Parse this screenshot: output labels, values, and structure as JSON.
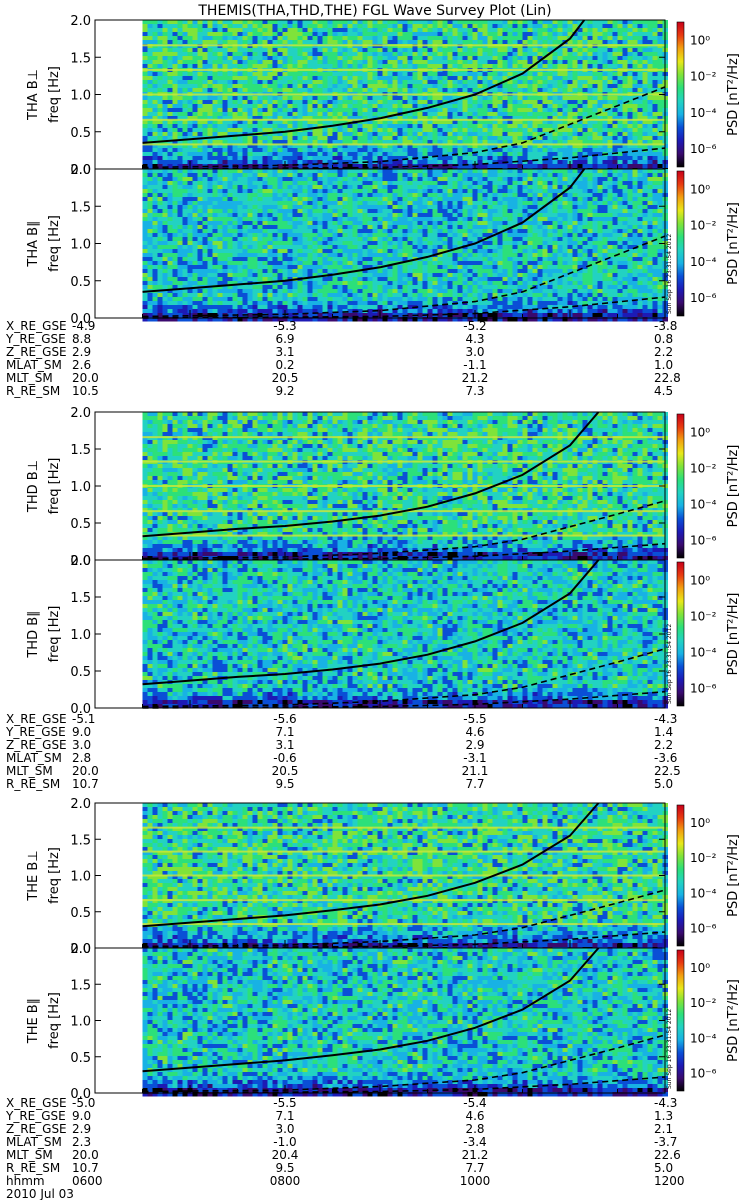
{
  "title": "THEMIS(THA,THD,THE) FGL Wave Survey Plot (Lin)",
  "colorbar": {
    "label": "PSD [nT²/Hz]",
    "ticks": [
      "10⁰",
      "10⁻²",
      "10⁻⁴",
      "10⁻⁶"
    ],
    "colors": [
      "#000000",
      "#3a0a6e",
      "#1d1ab5",
      "#0a4fd6",
      "#18b2e4",
      "#22d2c2",
      "#2ce07a",
      "#7fe33a",
      "#e8e81a",
      "#f2a010",
      "#e83a10",
      "#c8001a"
    ]
  },
  "stamp": "Sun Sep 16 23:31:54 2012",
  "chart_data": [
    {
      "type": "heatmap",
      "panel_label": "THA B⊥",
      "ylabel": "freq [Hz]",
      "yticks": [
        "0.0",
        "0.5",
        "1.0",
        "1.5",
        "2.0"
      ],
      "ylim": [
        0,
        2.0
      ],
      "data_start_hour": 6.5,
      "curves": {
        "solid": [
          [
            6.5,
            0.35
          ],
          [
            7.0,
            0.4
          ],
          [
            7.5,
            0.45
          ],
          [
            8.0,
            0.5
          ],
          [
            8.5,
            0.58
          ],
          [
            9.0,
            0.68
          ],
          [
            9.5,
            0.82
          ],
          [
            10.0,
            1.0
          ],
          [
            10.5,
            1.28
          ],
          [
            11.0,
            1.75
          ],
          [
            11.15,
            2.0
          ]
        ],
        "dashed_upper": [
          [
            6.5,
            0.02
          ],
          [
            8.0,
            0.05
          ],
          [
            9.0,
            0.1
          ],
          [
            10.0,
            0.22
          ],
          [
            10.5,
            0.35
          ],
          [
            11.0,
            0.6
          ],
          [
            11.5,
            0.85
          ],
          [
            12.0,
            1.1
          ]
        ],
        "dashed_lower": [
          [
            6.5,
            0.0
          ],
          [
            9.0,
            0.02
          ],
          [
            10.0,
            0.06
          ],
          [
            11.0,
            0.15
          ],
          [
            12.0,
            0.28
          ]
        ]
      }
    },
    {
      "type": "heatmap",
      "panel_label": "THA B∥",
      "ylabel": "freq [Hz]",
      "yticks": [
        "0.0",
        "0.5",
        "1.0",
        "1.5",
        "2.0"
      ],
      "ylim": [
        0,
        2.0
      ],
      "data_start_hour": 6.5,
      "curves": {
        "solid": [
          [
            6.5,
            0.35
          ],
          [
            7.0,
            0.4
          ],
          [
            7.5,
            0.45
          ],
          [
            8.0,
            0.5
          ],
          [
            8.5,
            0.58
          ],
          [
            9.0,
            0.68
          ],
          [
            9.5,
            0.82
          ],
          [
            10.0,
            1.0
          ],
          [
            10.5,
            1.28
          ],
          [
            11.0,
            1.75
          ],
          [
            11.15,
            2.0
          ]
        ],
        "dashed_upper": [
          [
            6.5,
            0.02
          ],
          [
            8.0,
            0.05
          ],
          [
            9.0,
            0.1
          ],
          [
            10.0,
            0.22
          ],
          [
            10.5,
            0.35
          ],
          [
            11.0,
            0.6
          ],
          [
            11.5,
            0.85
          ],
          [
            12.0,
            1.1
          ]
        ],
        "dashed_lower": [
          [
            6.5,
            0.0
          ],
          [
            9.0,
            0.02
          ],
          [
            10.0,
            0.06
          ],
          [
            11.0,
            0.15
          ],
          [
            12.0,
            0.28
          ]
        ]
      }
    },
    {
      "type": "heatmap",
      "panel_label": "THD B⊥",
      "ylabel": "freq [Hz]",
      "yticks": [
        "0.0",
        "0.5",
        "1.0",
        "1.5",
        "2.0"
      ],
      "ylim": [
        0,
        2.0
      ],
      "data_start_hour": 6.5,
      "curves": {
        "solid": [
          [
            6.5,
            0.32
          ],
          [
            7.0,
            0.37
          ],
          [
            7.5,
            0.42
          ],
          [
            8.0,
            0.46
          ],
          [
            8.5,
            0.52
          ],
          [
            9.0,
            0.6
          ],
          [
            9.5,
            0.72
          ],
          [
            10.0,
            0.9
          ],
          [
            10.5,
            1.15
          ],
          [
            11.0,
            1.55
          ],
          [
            11.3,
            2.0
          ]
        ],
        "dashed_upper": [
          [
            6.5,
            0.02
          ],
          [
            8.0,
            0.04
          ],
          [
            9.0,
            0.09
          ],
          [
            10.0,
            0.18
          ],
          [
            10.5,
            0.28
          ],
          [
            11.0,
            0.45
          ],
          [
            11.5,
            0.62
          ],
          [
            12.0,
            0.8
          ]
        ],
        "dashed_lower": [
          [
            6.5,
            0.0
          ],
          [
            9.0,
            0.02
          ],
          [
            10.0,
            0.05
          ],
          [
            11.0,
            0.12
          ],
          [
            12.0,
            0.22
          ]
        ]
      }
    },
    {
      "type": "heatmap",
      "panel_label": "THD B∥",
      "ylabel": "freq [Hz]",
      "yticks": [
        "0.0",
        "0.5",
        "1.0",
        "1.5",
        "2.0"
      ],
      "ylim": [
        0,
        2.0
      ],
      "data_start_hour": 6.5,
      "curves": {
        "solid": [
          [
            6.5,
            0.32
          ],
          [
            7.0,
            0.37
          ],
          [
            7.5,
            0.42
          ],
          [
            8.0,
            0.46
          ],
          [
            8.5,
            0.52
          ],
          [
            9.0,
            0.6
          ],
          [
            9.5,
            0.72
          ],
          [
            10.0,
            0.9
          ],
          [
            10.5,
            1.15
          ],
          [
            11.0,
            1.55
          ],
          [
            11.3,
            2.0
          ]
        ],
        "dashed_upper": [
          [
            6.5,
            0.02
          ],
          [
            8.0,
            0.04
          ],
          [
            9.0,
            0.09
          ],
          [
            10.0,
            0.18
          ],
          [
            10.5,
            0.28
          ],
          [
            11.0,
            0.45
          ],
          [
            11.5,
            0.62
          ],
          [
            12.0,
            0.8
          ]
        ],
        "dashed_lower": [
          [
            6.5,
            0.0
          ],
          [
            9.0,
            0.02
          ],
          [
            10.0,
            0.05
          ],
          [
            11.0,
            0.12
          ],
          [
            12.0,
            0.22
          ]
        ]
      }
    },
    {
      "type": "heatmap",
      "panel_label": "THE B⊥",
      "ylabel": "freq [Hz]",
      "yticks": [
        "0.0",
        "0.5",
        "1.0",
        "1.5",
        "2.0"
      ],
      "ylim": [
        0,
        2.0
      ],
      "data_start_hour": 6.5,
      "curves": {
        "solid": [
          [
            6.5,
            0.3
          ],
          [
            7.0,
            0.35
          ],
          [
            7.5,
            0.4
          ],
          [
            8.0,
            0.45
          ],
          [
            8.5,
            0.52
          ],
          [
            9.0,
            0.6
          ],
          [
            9.5,
            0.72
          ],
          [
            10.0,
            0.9
          ],
          [
            10.5,
            1.15
          ],
          [
            11.0,
            1.55
          ],
          [
            11.3,
            2.0
          ]
        ],
        "dashed_upper": [
          [
            6.5,
            0.02
          ],
          [
            8.0,
            0.04
          ],
          [
            9.0,
            0.09
          ],
          [
            10.0,
            0.18
          ],
          [
            10.5,
            0.28
          ],
          [
            11.0,
            0.45
          ],
          [
            11.5,
            0.62
          ],
          [
            12.0,
            0.8
          ]
        ],
        "dashed_lower": [
          [
            6.5,
            0.0
          ],
          [
            9.0,
            0.02
          ],
          [
            10.0,
            0.05
          ],
          [
            11.0,
            0.12
          ],
          [
            12.0,
            0.22
          ]
        ]
      }
    },
    {
      "type": "heatmap",
      "panel_label": "THE B∥",
      "ylabel": "freq [Hz]",
      "yticks": [
        "0.0",
        "0.5",
        "1.0",
        "1.5",
        "2.0"
      ],
      "ylim": [
        0,
        2.0
      ],
      "data_start_hour": 6.5,
      "curves": {
        "solid": [
          [
            6.5,
            0.3
          ],
          [
            7.0,
            0.35
          ],
          [
            7.5,
            0.4
          ],
          [
            8.0,
            0.45
          ],
          [
            8.5,
            0.52
          ],
          [
            9.0,
            0.6
          ],
          [
            9.5,
            0.72
          ],
          [
            10.0,
            0.9
          ],
          [
            10.5,
            1.15
          ],
          [
            11.0,
            1.55
          ],
          [
            11.3,
            2.0
          ]
        ],
        "dashed_upper": [
          [
            6.5,
            0.02
          ],
          [
            8.0,
            0.04
          ],
          [
            9.0,
            0.09
          ],
          [
            10.0,
            0.18
          ],
          [
            10.5,
            0.28
          ],
          [
            11.0,
            0.45
          ],
          [
            11.5,
            0.62
          ],
          [
            12.0,
            0.8
          ]
        ],
        "dashed_lower": [
          [
            6.5,
            0.0
          ],
          [
            9.0,
            0.02
          ],
          [
            10.0,
            0.05
          ],
          [
            11.0,
            0.12
          ],
          [
            12.0,
            0.22
          ]
        ]
      }
    }
  ],
  "ephemeris": [
    {
      "rows": [
        {
          "label": "X_RE_GSE",
          "values": [
            "-4.9",
            "-5.3",
            "-5.2",
            "-3.8"
          ]
        },
        {
          "label": "Y_RE_GSE",
          "values": [
            "8.8",
            "6.9",
            "4.3",
            "0.8"
          ]
        },
        {
          "label": "Z_RE_GSE",
          "values": [
            "2.9",
            "3.1",
            "3.0",
            "2.2"
          ]
        },
        {
          "label": "MLAT_SM",
          "values": [
            "2.6",
            "0.2",
            "-1.1",
            "1.0"
          ]
        },
        {
          "label": "MLT_SM",
          "values": [
            "20.0",
            "20.5",
            "21.2",
            "22.8"
          ]
        },
        {
          "label": "R_RE_SM",
          "values": [
            "10.5",
            "9.2",
            "7.3",
            "4.5"
          ]
        }
      ]
    },
    {
      "rows": [
        {
          "label": "X_RE_GSE",
          "values": [
            "-5.1",
            "-5.6",
            "-5.5",
            "-4.3"
          ]
        },
        {
          "label": "Y_RE_GSE",
          "values": [
            "9.0",
            "7.1",
            "4.6",
            "1.4"
          ]
        },
        {
          "label": "Z_RE_GSE",
          "values": [
            "3.0",
            "3.1",
            "2.9",
            "2.2"
          ]
        },
        {
          "label": "MLAT_SM",
          "values": [
            "2.8",
            "-0.6",
            "-3.1",
            "-3.6"
          ]
        },
        {
          "label": "MLT_SM",
          "values": [
            "20.0",
            "20.5",
            "21.1",
            "22.5"
          ]
        },
        {
          "label": "R_RE_SM",
          "values": [
            "10.7",
            "9.5",
            "7.7",
            "5.0"
          ]
        }
      ]
    },
    {
      "rows": [
        {
          "label": "X_RE_GSE",
          "values": [
            "-5.0",
            "-5.5",
            "-5.4",
            "-4.3"
          ]
        },
        {
          "label": "Y_RE_GSE",
          "values": [
            "9.0",
            "7.1",
            "4.6",
            "1.3"
          ]
        },
        {
          "label": "Z_RE_GSE",
          "values": [
            "2.9",
            "3.0",
            "2.8",
            "2.1"
          ]
        },
        {
          "label": "MLAT_SM",
          "values": [
            "2.3",
            "-1.0",
            "-3.4",
            "-3.7"
          ]
        },
        {
          "label": "MLT_SM",
          "values": [
            "20.0",
            "20.4",
            "21.2",
            "22.6"
          ]
        },
        {
          "label": "R_RE_SM",
          "values": [
            "10.7",
            "9.5",
            "7.7",
            "5.0"
          ]
        },
        {
          "label": "hhmm",
          "values": [
            "0600",
            "0800",
            "1000",
            "1200"
          ]
        }
      ],
      "date": "2010 Jul 03"
    }
  ]
}
